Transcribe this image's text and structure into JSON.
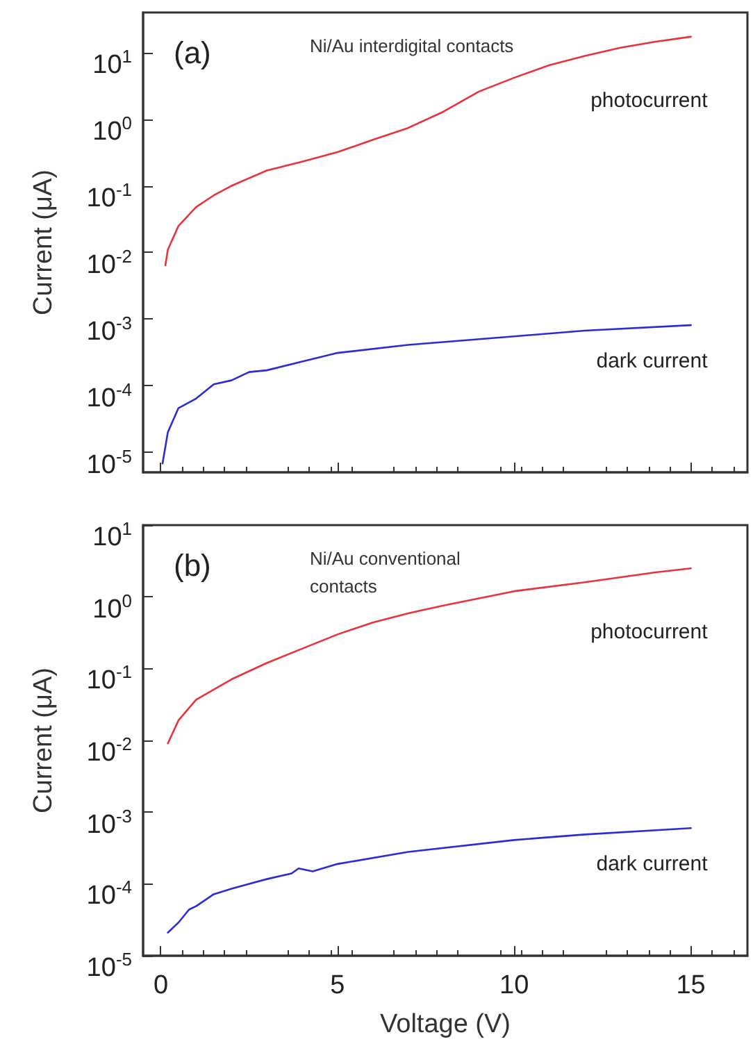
{
  "chart_data": [
    {
      "type": "line",
      "title": "(a)",
      "ylabel": "Current (μA)",
      "annotations": [
        "Ni/Au interdigital contacts"
      ],
      "log": "y",
      "tick_labels": "y",
      "grid": false,
      "legend": false,
      "marker": "none",
      "line_style": "solid",
      "xlim": [
        -0.5,
        16.6
      ],
      "xticks": [
        {
          "value": 0,
          "label": null
        },
        {
          "value": 5,
          "label": null
        },
        {
          "value": 10,
          "label": null
        },
        {
          "value": 15,
          "label": null
        }
      ],
      "ylim": [
        5e-06,
        40
      ],
      "yticks": [
        {
          "value": 1e-05,
          "label": "10$^{-5}$"
        },
        {
          "value": 0.0001,
          "label": "10$^{-4}$"
        },
        {
          "value": 0.001,
          "label": "10$^{-3}$"
        },
        {
          "value": 0.01,
          "label": "10$^{-2}$"
        },
        {
          "value": 0.1,
          "label": "10$^{-1}$"
        },
        {
          "value": 1,
          "label": "10$^{0}$"
        },
        {
          "value": 10,
          "label": "10$^{1}$"
        }
      ],
      "series": [
        {
          "name": "photocurrent",
          "color": "#e8323c",
          "x": [
            0.13,
            0.2,
            0.5,
            1,
            1.5,
            2,
            3,
            4,
            5,
            6,
            7,
            8,
            9,
            10,
            11,
            12,
            13,
            14,
            15
          ],
          "values": [
            0.0064,
            0.011,
            0.025,
            0.048,
            0.072,
            0.1,
            0.17,
            0.23,
            0.32,
            0.49,
            0.74,
            1.3,
            2.6,
            4.2,
            6.5,
            8.9,
            11.8,
            14.6,
            17.3
          ]
        },
        {
          "name": "dark current",
          "color": "#2b2bd8",
          "x": [
            0.05,
            0.2,
            0.5,
            1,
            1.5,
            2,
            2.5,
            3,
            4,
            5,
            7,
            10,
            12,
            15
          ],
          "values": [
            6.8e-06,
            2e-05,
            4.6e-05,
            6.4e-05,
            0.000105,
            0.00012,
            0.00016,
            0.00017,
            0.00023,
            0.00031,
            0.00041,
            0.00055,
            0.00067,
            0.00081
          ]
        }
      ]
    },
    {
      "type": "line",
      "title": "(b)",
      "xlabel": "Voltage (V)",
      "ylabel": "Current (μA)",
      "annotations": [
        "Ni/Au conventional contacts"
      ],
      "log": "y",
      "grid": false,
      "legend": false,
      "marker": "none",
      "line_style": "solid",
      "xlim": [
        -0.5,
        16.6
      ],
      "xticks": [
        0,
        5,
        10,
        15
      ],
      "ylim": [
        1e-05,
        10
      ],
      "yticks": [
        {
          "value": 1e-05,
          "label": "10$^{-5}$"
        },
        {
          "value": 0.0001,
          "label": "10$^{-4}$"
        },
        {
          "value": 0.001,
          "label": "10$^{-3}$"
        },
        {
          "value": 0.01,
          "label": "10$^{-2}$"
        },
        {
          "value": 0.1,
          "label": "10$^{-1}$"
        },
        {
          "value": 1,
          "label": "10$^{0}$"
        },
        {
          "value": 10,
          "label": "10$^{1}$"
        }
      ],
      "series": [
        {
          "name": "photocurrent",
          "color": "#e8323c",
          "x": [
            0.2,
            0.5,
            1,
            2,
            3,
            4,
            5,
            6,
            7,
            8,
            10,
            12,
            14,
            15
          ],
          "values": [
            0.0091,
            0.019,
            0.037,
            0.071,
            0.12,
            0.19,
            0.3,
            0.44,
            0.59,
            0.76,
            1.2,
            1.6,
            2.2,
            2.5
          ]
        },
        {
          "name": "dark current",
          "color": "#2b2bd8",
          "x": [
            0.2,
            0.5,
            0.8,
            1,
            1.5,
            2,
            3,
            3.7,
            3.9,
            4.3,
            5,
            7,
            10,
            12,
            15
          ],
          "values": [
            2.1e-05,
            2.9e-05,
            4.4e-05,
            4.9e-05,
            7.2e-05,
            8.6e-05,
            0.000117,
            0.00014,
            0.000165,
            0.00015,
            0.00019,
            0.00028,
            0.00041,
            0.00049,
            0.0006
          ]
        }
      ]
    }
  ]
}
